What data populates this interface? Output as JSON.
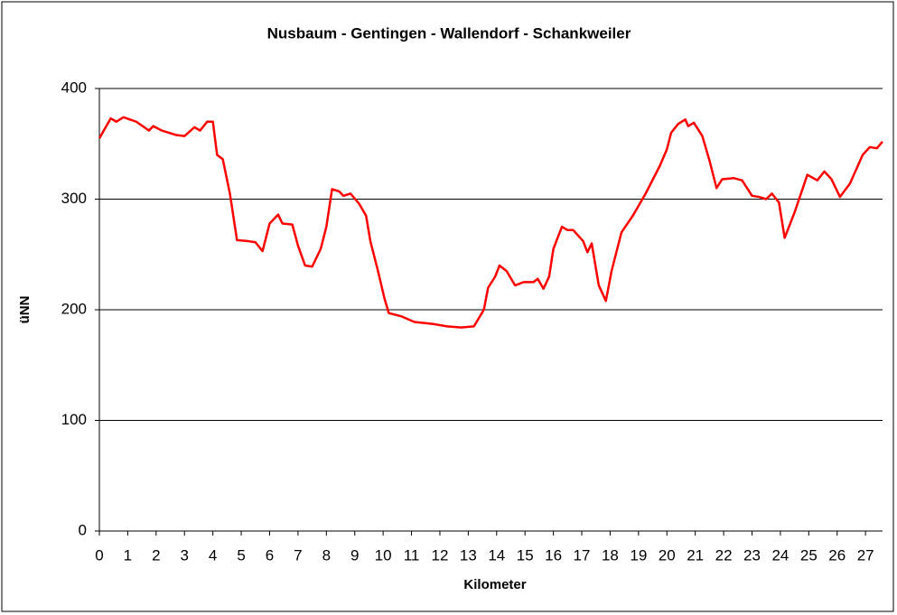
{
  "chart_data": {
    "type": "line",
    "title": "Nusbaum - Gentingen - Wallendorf - Schankweiler",
    "x_label": "Kilometer",
    "y_label": "üNN",
    "x": [
      0,
      0.4,
      0.6,
      0.85,
      1.3,
      1.75,
      1.9,
      2.2,
      2.7,
      3.0,
      3.35,
      3.55,
      3.8,
      4.0,
      4.15,
      4.35,
      4.6,
      4.85,
      5.25,
      5.5,
      5.75,
      6.0,
      6.3,
      6.45,
      6.8,
      7.0,
      7.25,
      7.5,
      7.8,
      8.0,
      8.2,
      8.45,
      8.6,
      8.85,
      9.15,
      9.4,
      9.55,
      9.8,
      10.05,
      10.2,
      10.65,
      11.1,
      11.8,
      12.25,
      12.75,
      13.2,
      13.55,
      13.7,
      13.95,
      14.1,
      14.35,
      14.65,
      14.95,
      15.3,
      15.45,
      15.65,
      15.85,
      16.0,
      16.3,
      16.5,
      16.7,
      17.05,
      17.2,
      17.35,
      17.6,
      17.85,
      18.05,
      18.4,
      18.8,
      19.25,
      19.75,
      20.0,
      20.15,
      20.4,
      20.65,
      20.75,
      20.95,
      21.25,
      21.5,
      21.75,
      21.95,
      22.35,
      22.65,
      23.0,
      23.25,
      23.5,
      23.7,
      23.95,
      24.15,
      24.5,
      24.95,
      25.3,
      25.55,
      25.8,
      26.1,
      26.45,
      26.9,
      27.15,
      27.4,
      27.6
    ],
    "series": [
      {
        "name": "üNN",
        "color": "#ff0000",
        "values": [
          355,
          373,
          370,
          374,
          370,
          362,
          366,
          362,
          358,
          357,
          365,
          362,
          370,
          370,
          340,
          336,
          305,
          263,
          262,
          261,
          253,
          278,
          286,
          278,
          277,
          258,
          240,
          239,
          255,
          275,
          309,
          307,
          303,
          305,
          296,
          285,
          262,
          237,
          210,
          197,
          194,
          189,
          187,
          185,
          184,
          185,
          200,
          220,
          230,
          240,
          235,
          222,
          225,
          225,
          228,
          219,
          230,
          255,
          275,
          272,
          272,
          262,
          252,
          260,
          222,
          208,
          235,
          270,
          285,
          305,
          330,
          345,
          360,
          368,
          372,
          366,
          369,
          357,
          335,
          310,
          318,
          319,
          317,
          303,
          302,
          300,
          305,
          297,
          265,
          288,
          322,
          317,
          325,
          318,
          302,
          314,
          340,
          347,
          346,
          352
        ]
      }
    ],
    "xlim": [
      0,
      27.6
    ],
    "xticks": [
      0,
      1,
      2,
      3,
      4,
      5,
      6,
      7,
      8,
      9,
      10,
      11,
      12,
      13,
      14,
      15,
      16,
      17,
      18,
      19,
      20,
      21,
      22,
      23,
      24,
      25,
      26,
      27
    ],
    "ylim": [
      0,
      400
    ],
    "yticks": [
      0,
      100,
      200,
      300,
      400
    ],
    "grid": true
  }
}
